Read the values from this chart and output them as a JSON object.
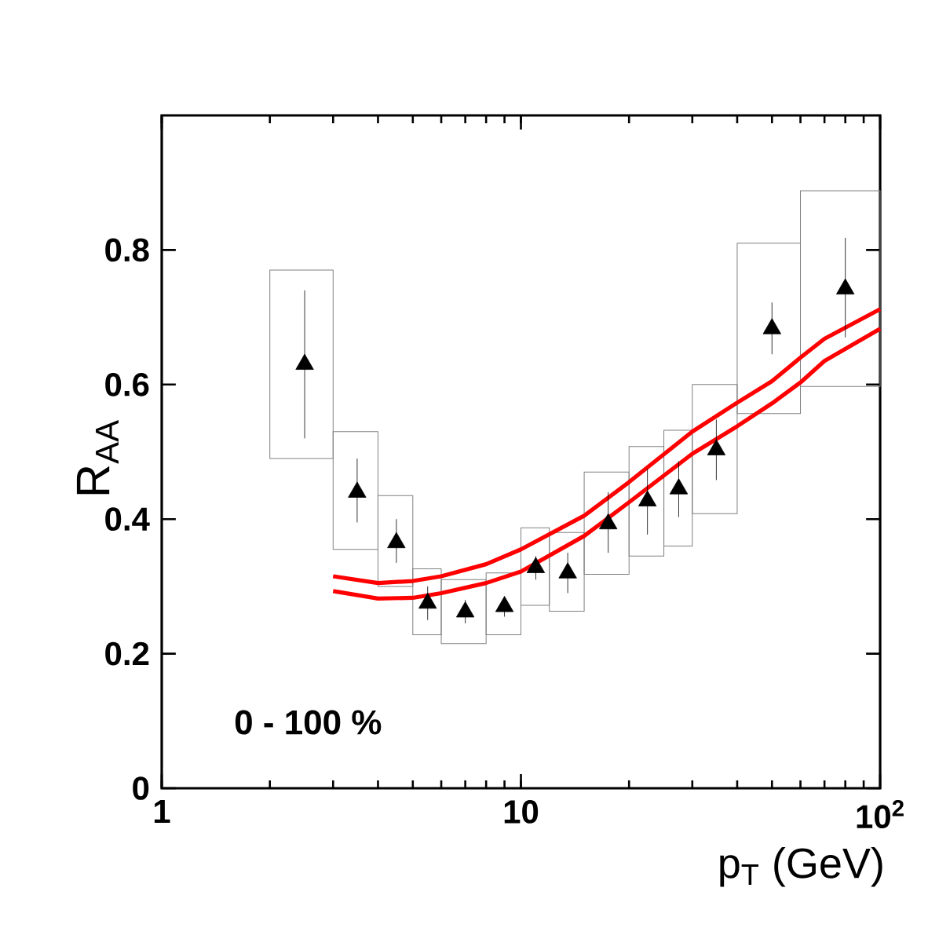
{
  "chart_data": {
    "type": "scatter",
    "xlabel": "p$_{T}$ (GeV)",
    "ylabel": "R$_{AA}$",
    "log": "x",
    "xlim": [
      1,
      100
    ],
    "ylim": [
      0,
      1
    ],
    "xticks": [
      1,
      10,
      {
        "value": 100,
        "label": "10$^{2}$"
      }
    ],
    "yticks": [
      0,
      0.2,
      0.4,
      0.6,
      0.8
    ],
    "annotations": [
      "0 - 100 %"
    ],
    "series": [
      {
        "type": "histogram",
        "color": "#808080",
        "bins": [
          2,
          3,
          4,
          5,
          6,
          8,
          10,
          12,
          15,
          20,
          25,
          30,
          40,
          60,
          100
        ],
        "base": [
          0.49,
          0.355,
          0.3,
          0.228,
          0.215,
          0.228,
          0.272,
          0.263,
          0.318,
          0.345,
          0.36,
          0.408,
          0.557,
          0.597
        ],
        "values": [
          0.28,
          0.175,
          0.135,
          0.098,
          0.095,
          0.092,
          0.115,
          0.117,
          0.152,
          0.163,
          0.172,
          0.192,
          0.253,
          0.291
        ]
      },
      {
        "color": "#000000",
        "marker": "triangle",
        "x": [
          2.5,
          3.5,
          4.5,
          5.5,
          7,
          9,
          11,
          13.5,
          17.5,
          22.5,
          27.5,
          35,
          50,
          80
        ],
        "values": [
          0.63,
          0.44,
          0.365,
          0.275,
          0.262,
          0.27,
          0.328,
          0.32,
          0.393,
          0.427,
          0.445,
          0.503,
          0.683,
          0.742
        ],
        "errors": [
          [
            0.52,
            0.74
          ],
          [
            0.395,
            0.49
          ],
          [
            0.335,
            0.4
          ],
          [
            0.25,
            0.3
          ],
          [
            0.245,
            0.28
          ],
          [
            0.255,
            0.285
          ],
          [
            0.31,
            0.345
          ],
          [
            0.29,
            0.35
          ],
          [
            0.35,
            0.44
          ],
          [
            0.377,
            0.475
          ],
          [
            0.403,
            0.486
          ],
          [
            0.458,
            0.548
          ],
          [
            0.645,
            0.722
          ],
          [
            0.67,
            0.818
          ]
        ]
      },
      {
        "type": "line",
        "color": "#ff0000",
        "x": [
          3,
          4,
          5,
          6,
          8,
          10,
          15,
          20,
          30,
          40,
          50,
          60,
          70,
          100
        ],
        "values": [
          0.315,
          0.305,
          0.308,
          0.315,
          0.333,
          0.355,
          0.405,
          0.455,
          0.53,
          0.573,
          0.605,
          0.64,
          0.668,
          0.712
        ]
      },
      {
        "type": "line",
        "color": "#ff0000",
        "x": [
          3,
          4,
          5,
          6,
          8,
          10,
          15,
          20,
          30,
          40,
          50,
          60,
          70,
          100
        ],
        "values": [
          0.293,
          0.282,
          0.283,
          0.29,
          0.305,
          0.322,
          0.375,
          0.425,
          0.497,
          0.538,
          0.572,
          0.603,
          0.635,
          0.683
        ]
      }
    ]
  }
}
